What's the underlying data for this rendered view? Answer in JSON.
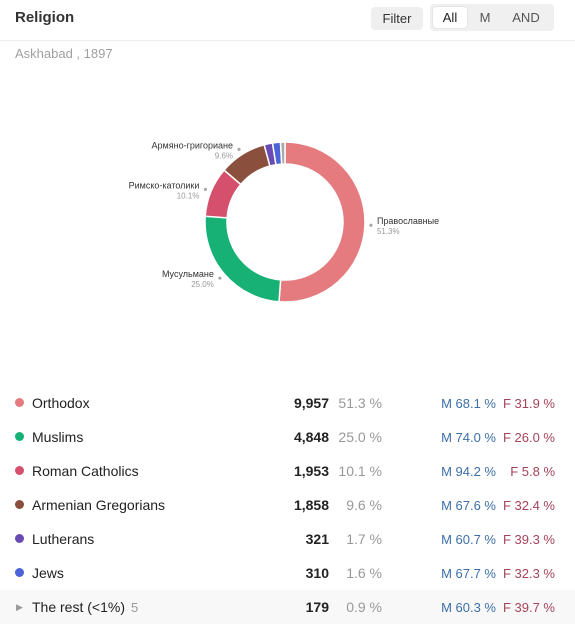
{
  "header": {
    "title": "Religion",
    "filter_label": "Filter",
    "segments": [
      "All",
      "M",
      "AND"
    ],
    "active_segment": "All"
  },
  "subtitle": "Askhabad , 1897",
  "chart_data": {
    "type": "pie",
    "donut": true,
    "slices": [
      {
        "label": "Православные",
        "percent_label": "51.3%",
        "value": 51.3,
        "color": "#e57b7f"
      },
      {
        "label": "Мусульмане",
        "percent_label": "25.0%",
        "value": 25.0,
        "color": "#17b176"
      },
      {
        "label": "Римско-католики",
        "percent_label": "10.1%",
        "value": 10.1,
        "color": "#d4506c"
      },
      {
        "label": "Армяно-григориане",
        "percent_label": "9.6%",
        "value": 9.6,
        "color": "#8a4f3d"
      },
      {
        "label": "",
        "percent_label": "",
        "value": 1.7,
        "color": "#6a4bb3"
      },
      {
        "label": "",
        "percent_label": "",
        "value": 1.6,
        "color": "#4d63d8"
      },
      {
        "label": "",
        "percent_label": "",
        "value": 0.9,
        "color": "#a9a9a9"
      }
    ]
  },
  "rows": [
    {
      "name": "Orthodox",
      "count": "9,957",
      "pct": "51.3 %",
      "m": "M 68.1 %",
      "f": "F 31.9 %",
      "color": "#e57b7f"
    },
    {
      "name": "Muslims",
      "count": "4,848",
      "pct": "25.0 %",
      "m": "M 74.0 %",
      "f": "F 26.0 %",
      "color": "#17b176"
    },
    {
      "name": "Roman Catholics",
      "count": "1,953",
      "pct": "10.1 %",
      "m": "M 94.2 %",
      "f": "F 5.8 %",
      "color": "#d4506c"
    },
    {
      "name": "Armenian Gregorians",
      "count": "1,858",
      "pct": "9.6 %",
      "m": "M 67.6 %",
      "f": "F 32.4 %",
      "color": "#8a4f3d"
    },
    {
      "name": "Lutherans",
      "count": "321",
      "pct": "1.7 %",
      "m": "M 60.7 %",
      "f": "F 39.3 %",
      "color": "#6a4bb3"
    },
    {
      "name": "Jews",
      "count": "310",
      "pct": "1.6 %",
      "m": "M 67.7 %",
      "f": "F 32.3 %",
      "color": "#4d63d8"
    }
  ],
  "rest": {
    "name": "The rest (<1%)",
    "extra": "5",
    "count": "179",
    "pct": "0.9 %",
    "m": "M 60.3 %",
    "f": "F 39.7 %"
  }
}
